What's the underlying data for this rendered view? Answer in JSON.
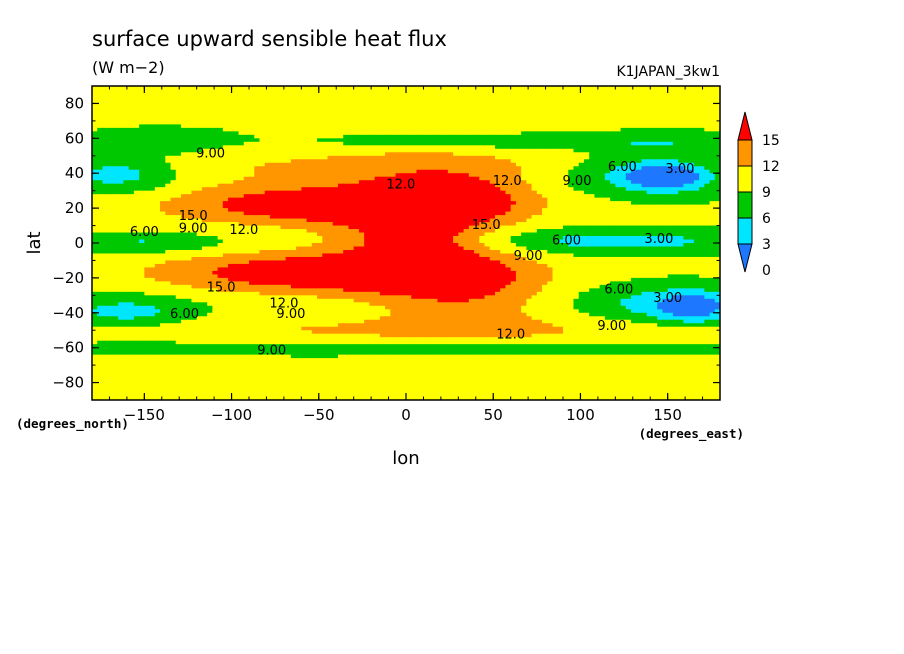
{
  "chart_data": {
    "type": "heatmap",
    "title": "surface upward sensible heat flux",
    "units": "(W m−2)",
    "run_label": "K1JAPAN_3kw1",
    "xlabel": "lon",
    "ylabel": "lat",
    "x_units": "(degrees_east)",
    "y_units": "(degrees_north)",
    "xlim": [
      -180,
      180
    ],
    "ylim": [
      -90,
      90
    ],
    "x_ticks": [
      -150,
      -100,
      -50,
      0,
      50,
      100,
      150
    ],
    "y_ticks": [
      80,
      60,
      40,
      20,
      0,
      -20,
      -40,
      -60,
      -80
    ],
    "x_tick_labels": [
      "−150",
      "−100",
      "−50",
      "0",
      "50",
      "100",
      "150"
    ],
    "y_tick_labels": [
      "80",
      "60",
      "40",
      "20",
      "0",
      "−20",
      "−40",
      "−60",
      "−80"
    ],
    "colorbar": {
      "levels": [
        0,
        3,
        6,
        9,
        12,
        15
      ],
      "labels": [
        "0",
        "3",
        "6",
        "9",
        "12",
        "15"
      ],
      "colors": [
        "#1e78ff",
        "#00e6ff",
        "#00c800",
        "#ffff00",
        "#ff9600",
        "#ff0000"
      ]
    },
    "contour_labels": [
      {
        "text": "9.00",
        "lon": -112,
        "lat": 52
      },
      {
        "text": "6.00",
        "lon": -150,
        "lat": 7
      },
      {
        "text": "9.00",
        "lon": -122,
        "lat": 9
      },
      {
        "text": "12.0",
        "lon": -93,
        "lat": 8
      },
      {
        "text": "15.0",
        "lon": -122,
        "lat": 16
      },
      {
        "text": "12.0",
        "lon": -3,
        "lat": 34
      },
      {
        "text": "12.0",
        "lon": 58,
        "lat": 36
      },
      {
        "text": "15.0",
        "lon": 46,
        "lat": 11
      },
      {
        "text": "9.00",
        "lon": 98,
        "lat": 36
      },
      {
        "text": "6.00",
        "lon": 124,
        "lat": 44
      },
      {
        "text": "3.00",
        "lon": 157,
        "lat": 43
      },
      {
        "text": "6.00",
        "lon": 92,
        "lat": 2
      },
      {
        "text": "3.00",
        "lon": 145,
        "lat": 3
      },
      {
        "text": "9.00",
        "lon": 70,
        "lat": -7
      },
      {
        "text": "15.0",
        "lon": -106,
        "lat": -25
      },
      {
        "text": "12.0",
        "lon": -70,
        "lat": -34
      },
      {
        "text": "9.00",
        "lon": -66,
        "lat": -40
      },
      {
        "text": "6.00",
        "lon": -127,
        "lat": -40
      },
      {
        "text": "6.00",
        "lon": 122,
        "lat": -26
      },
      {
        "text": "3.00",
        "lon": 150,
        "lat": -31
      },
      {
        "text": "9.00",
        "lon": 118,
        "lat": -47
      },
      {
        "text": "12.0",
        "lon": 60,
        "lat": -52
      },
      {
        "text": "9.00",
        "lon": -77,
        "lat": -61
      }
    ]
  }
}
